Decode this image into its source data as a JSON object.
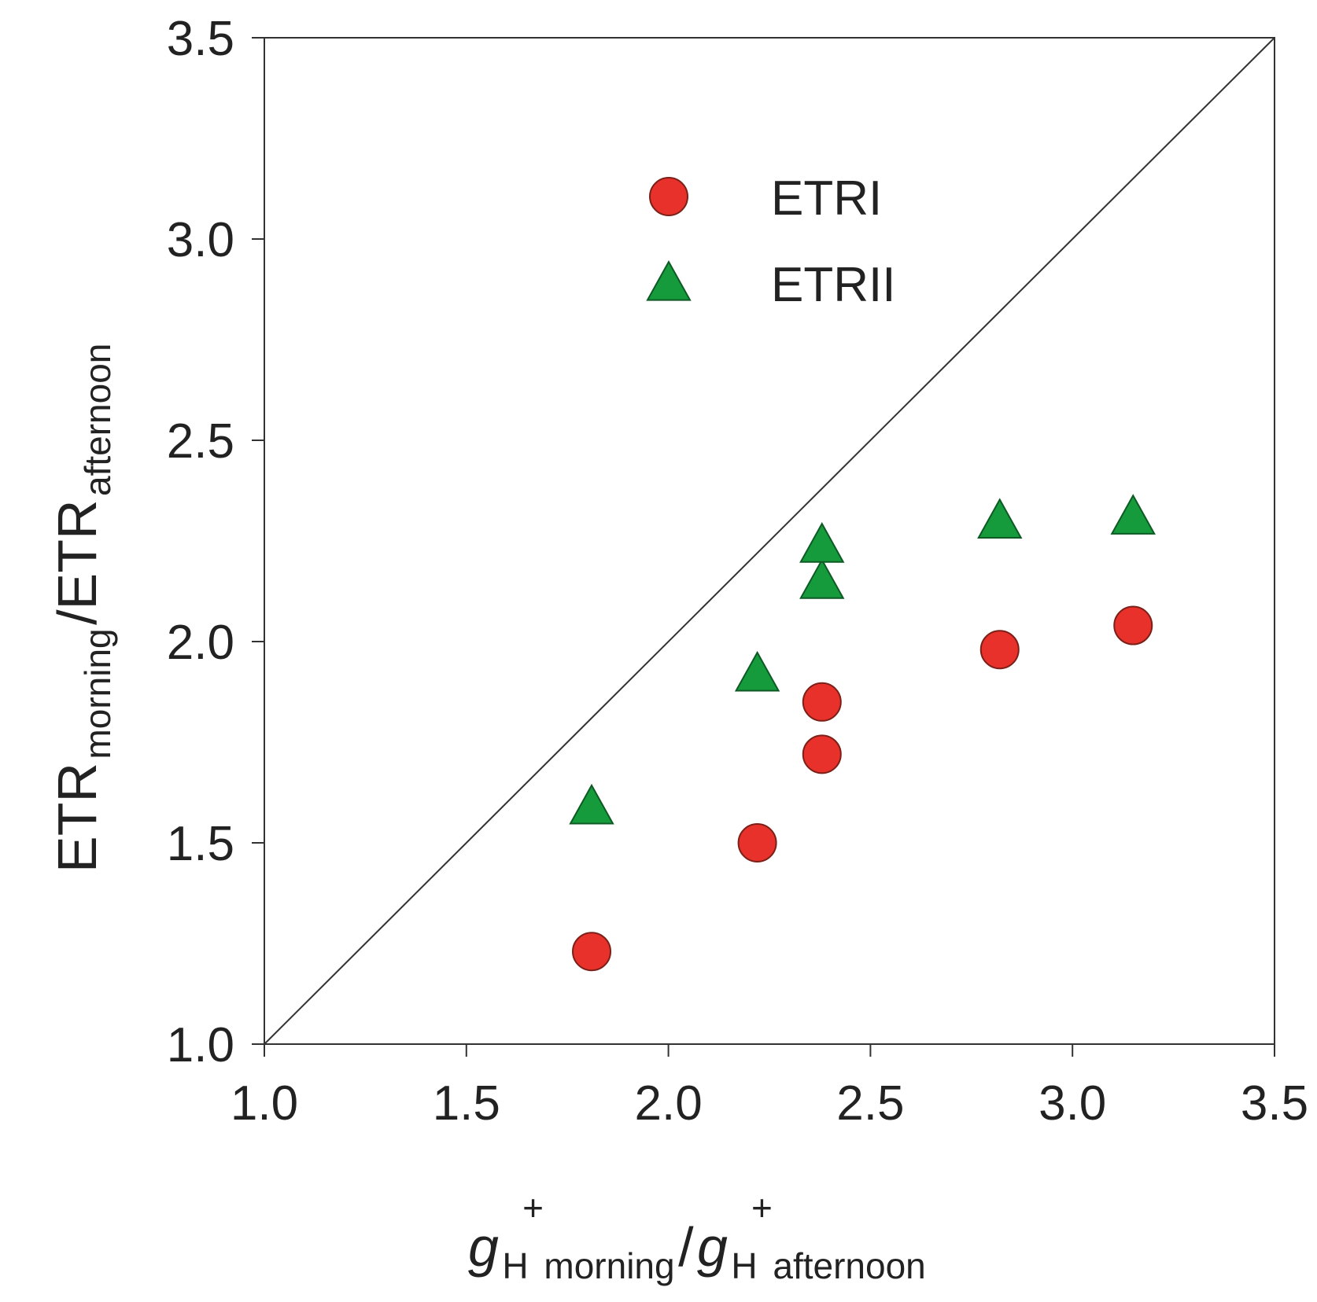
{
  "chart_data": {
    "type": "scatter",
    "title": "",
    "xlabel": {
      "main": "g",
      "sub1": "H",
      "sup1": "+",
      "sub2": "morning",
      "slash": "/",
      "main2": "g",
      "sub3": "H",
      "sup2": "+",
      "sub4": "afternoon"
    },
    "ylabel": {
      "main": "ETR",
      "sub1": "morning",
      "slash": "/ETR",
      "sub2": "afternoon"
    },
    "xlim": [
      1.0,
      3.5
    ],
    "ylim": [
      1.0,
      3.5
    ],
    "x_ticks": [
      "1.0",
      "1.5",
      "2.0",
      "2.5",
      "3.0",
      "3.5"
    ],
    "y_ticks": [
      "1.0",
      "1.5",
      "2.0",
      "2.5",
      "3.0",
      "3.5"
    ],
    "reference_line": {
      "type": "1:1",
      "from": [
        1.0,
        1.0
      ],
      "to": [
        3.5,
        3.5
      ],
      "color": "#333333"
    },
    "legend_position": "top-center",
    "series": [
      {
        "name": "ETRI",
        "marker": "circle",
        "color": "#e8312a",
        "points": [
          {
            "x": 1.81,
            "y": 1.23
          },
          {
            "x": 2.22,
            "y": 1.5
          },
          {
            "x": 2.38,
            "y": 1.72
          },
          {
            "x": 2.38,
            "y": 1.85
          },
          {
            "x": 2.82,
            "y": 1.98
          },
          {
            "x": 3.15,
            "y": 2.04
          }
        ]
      },
      {
        "name": "ETRII",
        "marker": "triangle",
        "color": "#169b3c",
        "points": [
          {
            "x": 1.81,
            "y": 1.59
          },
          {
            "x": 2.22,
            "y": 1.92
          },
          {
            "x": 2.38,
            "y": 2.15
          },
          {
            "x": 2.38,
            "y": 2.24
          },
          {
            "x": 2.82,
            "y": 2.3
          },
          {
            "x": 3.15,
            "y": 2.31
          }
        ]
      }
    ]
  }
}
